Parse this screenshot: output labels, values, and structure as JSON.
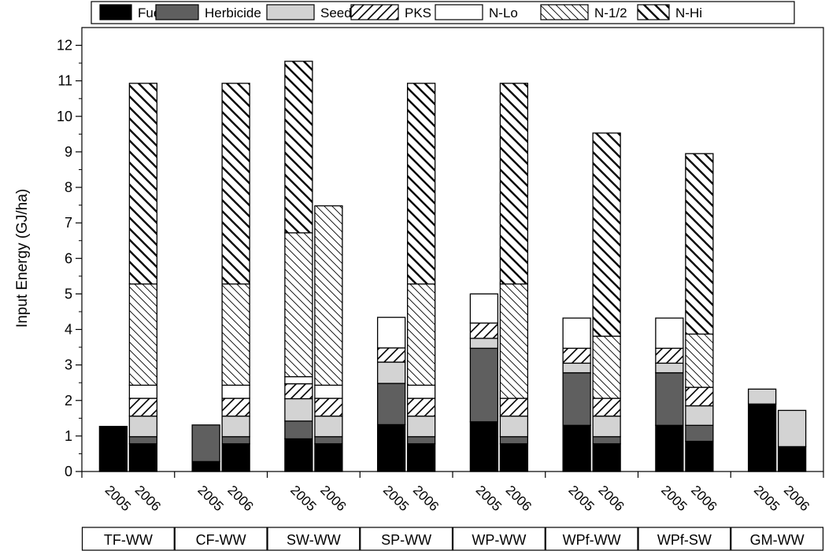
{
  "chart_data": {
    "type": "bar",
    "stacked": true,
    "title": "",
    "ylabel": "Input Energy (GJ/ha)",
    "xlabel": "",
    "ylim": [
      0,
      12.5
    ],
    "yticks": [
      0,
      1,
      2,
      3,
      4,
      5,
      6,
      7,
      8,
      9,
      10,
      11,
      12
    ],
    "grid": false,
    "legend_position": "top",
    "groups": [
      "TF-WW",
      "CF-WW",
      "SW-WW",
      "SP-WW",
      "WP-WW",
      "WPf-WW",
      "WPf-SW",
      "GM-WW"
    ],
    "years": [
      "2005",
      "2006"
    ],
    "categories": [
      "TF-WW 2005",
      "TF-WW 2006",
      "CF-WW 2005",
      "CF-WW 2006",
      "SW-WW 2005",
      "SW-WW 2006",
      "SP-WW 2005",
      "SP-WW 2006",
      "WP-WW 2005",
      "WP-WW 2006",
      "WPf-WW 2005",
      "WPf-WW 2006",
      "WPf-SW 2005",
      "WPf-SW 2006",
      "GM-WW 2005",
      "GM-WW 2006"
    ],
    "series": [
      {
        "name": "Fuel",
        "fill": "solid-black",
        "values": [
          1.27,
          0.78,
          0.28,
          0.78,
          0.92,
          0.78,
          1.32,
          0.78,
          1.4,
          0.78,
          1.3,
          0.78,
          1.3,
          0.85,
          1.9,
          0.7
        ]
      },
      {
        "name": "Herbicide",
        "fill": "solid-dark-gray",
        "values": [
          0,
          0.2,
          1.03,
          0.2,
          0.5,
          0.2,
          1.16,
          0.2,
          2.07,
          0.2,
          1.48,
          0.2,
          1.48,
          0.45,
          0,
          0
        ]
      },
      {
        "name": "Seed",
        "fill": "solid-light-gray",
        "values": [
          0,
          0.58,
          0,
          0.58,
          0.63,
          0.58,
          0.6,
          0.58,
          0.28,
          0.58,
          0.27,
          0.58,
          0.27,
          0.55,
          0.42,
          1.02
        ]
      },
      {
        "name": "PKS",
        "fill": "hatch-forward-wide",
        "values": [
          0,
          0.5,
          0,
          0.5,
          0.42,
          0.5,
          0.4,
          0.5,
          0.43,
          0.5,
          0.42,
          0.5,
          0.42,
          0.52,
          0,
          0
        ]
      },
      {
        "name": "N-Lo",
        "fill": "white",
        "values": [
          0,
          0.37,
          0,
          0.37,
          0.2,
          0.37,
          0.86,
          0.37,
          0.82,
          0,
          0.85,
          0,
          0.85,
          0,
          0,
          0
        ]
      },
      {
        "name": "N-1/2",
        "fill": "hatch-back-thin",
        "values": [
          0,
          2.85,
          0,
          2.85,
          4.05,
          5.05,
          0,
          2.85,
          0,
          3.22,
          0,
          1.75,
          0,
          1.5,
          0,
          0
        ]
      },
      {
        "name": "N-Hi",
        "fill": "hatch-back-thick",
        "values": [
          0,
          5.65,
          0,
          5.65,
          4.83,
          0,
          0,
          5.65,
          0,
          5.65,
          0,
          5.72,
          0,
          5.08,
          0,
          0
        ]
      }
    ]
  }
}
